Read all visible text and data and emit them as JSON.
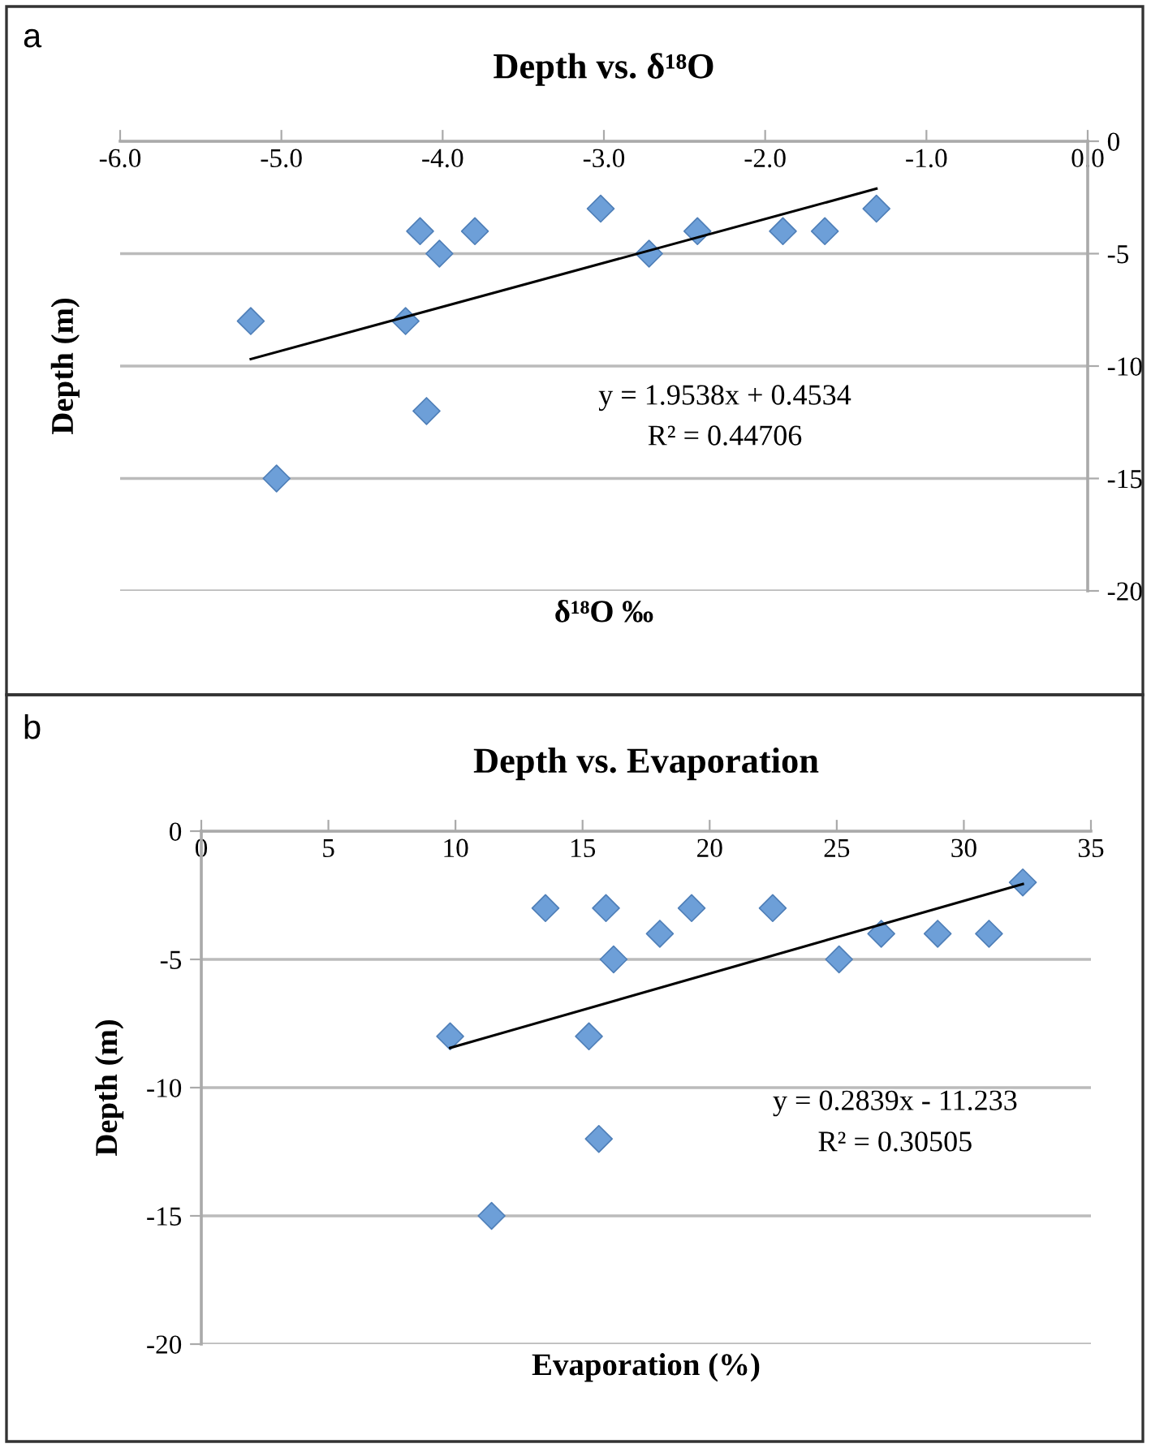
{
  "chart_data": [
    {
      "type": "scatter",
      "title": "Depth vs. δ¹⁸O",
      "xlabel": "δ¹⁸O ‰",
      "ylabel": "Depth (m)",
      "annotations": [
        "a",
        "y = 1.9538x + 0.4534",
        "R² = 0.44706"
      ],
      "series": [
        {
          "color": "#6d9fd8",
          "marker": "diamond",
          "x": [
            -5.19,
            -4.14,
            -4.02,
            -3.8,
            -4.23,
            -4.1,
            -5.03,
            -3.02,
            -2.72,
            -2.42,
            -1.89,
            -1.63,
            -1.31
          ],
          "values": [
            -8,
            -4,
            -5,
            -4,
            -8,
            -12,
            -15,
            -3,
            -5,
            -4,
            -4,
            -4,
            -3
          ]
        },
        {
          "type": "line",
          "color": "#000000",
          "marker": "none",
          "x": [
            -5.19,
            -1.31
          ],
          "values": [
            -9.69,
            -2.11
          ]
        }
      ],
      "xlim": [
        -6.0,
        0.0
      ],
      "xticks": [
        {
          "value": -6,
          "label": "-6.0"
        },
        {
          "value": -5,
          "label": "-5.0"
        },
        {
          "value": -4,
          "label": "-4.0"
        },
        {
          "value": -3,
          "label": "-3.0"
        },
        {
          "value": -2,
          "label": "-2.0"
        },
        {
          "value": -1,
          "label": "-1.0"
        },
        {
          "value": 0,
          "label": "0.0"
        }
      ],
      "ylim": [
        -20,
        0
      ],
      "yticks": [
        -20,
        -15,
        -10,
        -5,
        0
      ],
      "grid": "y",
      "legend": false
    },
    {
      "type": "scatter",
      "title": "Depth vs. Evaporation",
      "xlabel": "Evaporation (%)",
      "ylabel": "Depth (m)",
      "annotations": [
        "b",
        "y = 0.2839x - 11.233",
        "R² = 0.30505"
      ],
      "series": [
        {
          "color": "#6d9fd8",
          "marker": "diamond",
          "x": [
            9.79,
            13.54,
            15.92,
            16.22,
            15.25,
            15.64,
            11.42,
            18.04,
            19.29,
            22.48,
            25.09,
            26.75,
            28.97,
            30.99,
            32.32
          ],
          "values": [
            -8,
            -3,
            -3,
            -5,
            -8,
            -12,
            -15,
            -4,
            -3,
            -3,
            -5,
            -4,
            -4,
            -4,
            -2
          ]
        },
        {
          "type": "line",
          "color": "#000000",
          "marker": "none",
          "x": [
            9.79,
            32.32
          ],
          "values": [
            -8.45,
            -2.06
          ]
        }
      ],
      "xlim": [
        0,
        35
      ],
      "xticks": [
        0,
        5,
        10,
        15,
        20,
        25,
        30,
        35
      ],
      "ylim": [
        -20,
        0
      ],
      "yticks": [
        -20,
        -15,
        -10,
        -5,
        0
      ],
      "grid": "y",
      "legend": false
    }
  ]
}
